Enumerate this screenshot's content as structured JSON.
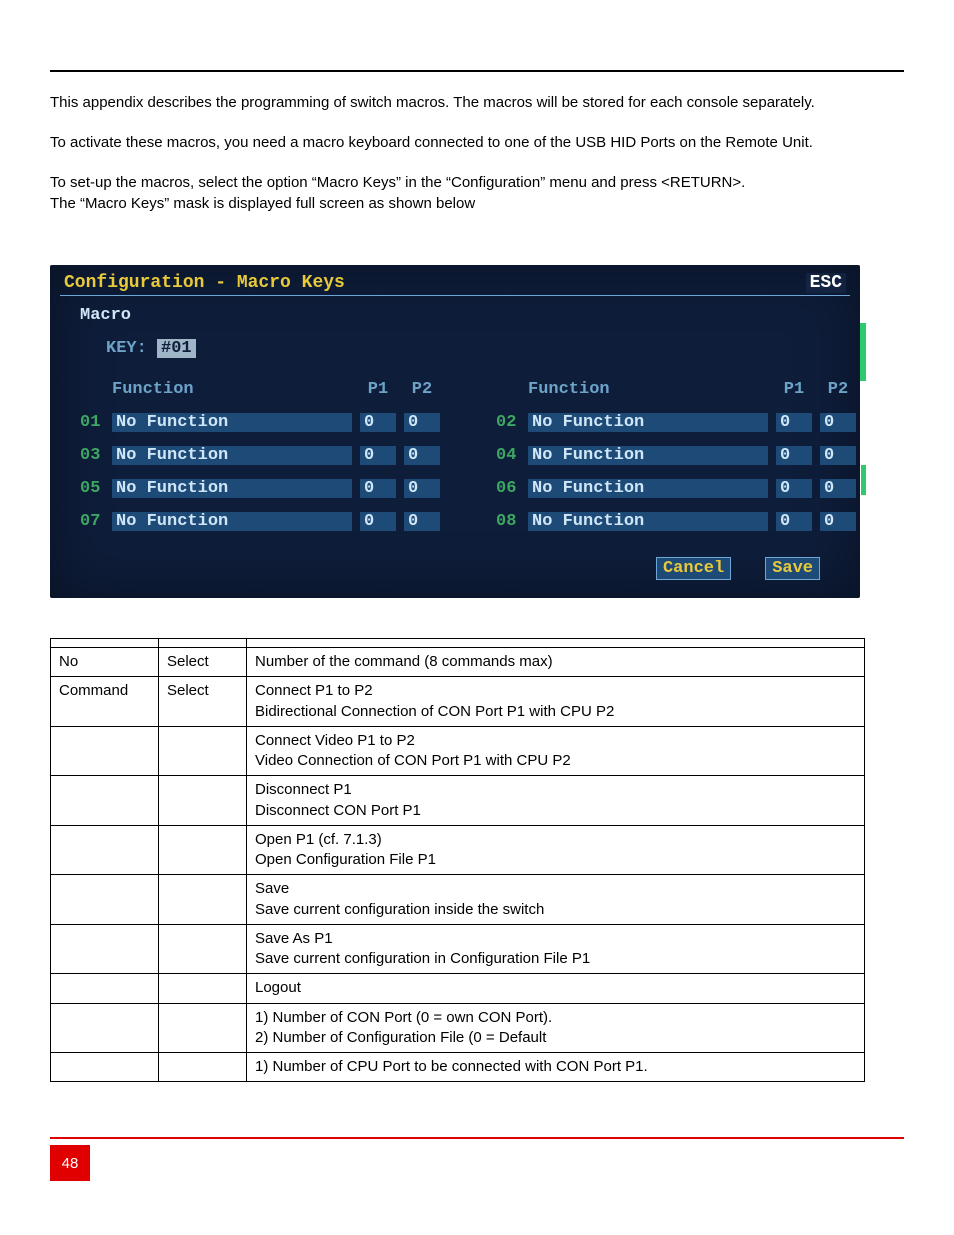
{
  "paragraphs": {
    "p1": "This appendix describes the programming of switch macros. The macros will be stored for each console separately.",
    "p2": "To activate these macros, you need a macro keyboard connected to one of the USB HID Ports on the Remote Unit.",
    "p3a": "To set-up the macros, select the option “Macro Keys” in the “Configuration” menu and press <RETURN>.",
    "p3b": "The “Macro Keys” mask is displayed full screen as shown below"
  },
  "screenshot": {
    "bg_color": "#0e1d3a",
    "title": "Configuration - Macro Keys",
    "title_color": "#e8c93a",
    "esc_label": "ESC",
    "macro_label": "Macro",
    "key_label": "KEY:",
    "key_value": "#01",
    "hdr_function": "Function",
    "hdr_p1": "P1",
    "hdr_p2": "P2",
    "header_color": "#6ea3c8",
    "num_color": "#3da761",
    "field_bg": "#1e4a78",
    "field_fg": "#cfe6f7",
    "rows": [
      {
        "n1": "01",
        "f1": "No Function",
        "p1a": "0",
        "p2a": "0",
        "n2": "02",
        "f2": "No Function",
        "p1b": "0",
        "p2b": "0"
      },
      {
        "n1": "03",
        "f1": "No Function",
        "p1a": "0",
        "p2a": "0",
        "n2": "04",
        "f2": "No Function",
        "p1b": "0",
        "p2b": "0"
      },
      {
        "n1": "05",
        "f1": "No Function",
        "p1a": "0",
        "p2a": "0",
        "n2": "06",
        "f2": "No Function",
        "p1b": "0",
        "p2b": "0"
      },
      {
        "n1": "07",
        "f1": "No Function",
        "p1a": "0",
        "p2a": "0",
        "n2": "08",
        "f2": "No Function",
        "p1b": "0",
        "p2b": "0"
      }
    ],
    "buttons": {
      "cancel": "Cancel",
      "save": "Save"
    }
  },
  "table": {
    "border_color": "#000000",
    "rows": [
      {
        "c1": "",
        "c2": "",
        "c3": ""
      },
      {
        "c1": "No",
        "c2": "Select",
        "c3": "Number of the command (8 commands max)"
      },
      {
        "c1": "Command",
        "c2": "Select",
        "c3": "Connect P1 to P2\nBidirectional Connection of CON Port P1 with CPU P2"
      },
      {
        "c1": "",
        "c2": "",
        "c3": "Connect Video P1 to P2\nVideo Connection of CON Port P1 with CPU P2"
      },
      {
        "c1": "",
        "c2": "",
        "c3": "Disconnect P1\nDisconnect CON Port P1"
      },
      {
        "c1": "",
        "c2": "",
        "c3": "Open P1 (cf. 7.1.3)\nOpen Configuration File P1"
      },
      {
        "c1": "",
        "c2": "",
        "c3": "Save\nSave current configuration inside the switch"
      },
      {
        "c1": "",
        "c2": "",
        "c3": "Save As P1\nSave current configuration in Configuration File P1"
      },
      {
        "c1": "",
        "c2": "",
        "c3": "Logout"
      },
      {
        "c1": "",
        "c2": "",
        "c3": "1) Number of CON Port (0 = own CON Port).\n2) Number of Configuration File (0 = Default"
      },
      {
        "c1": "",
        "c2": "",
        "c3": "1) Number of CPU Port to be connected with CON Port P1."
      }
    ]
  },
  "page_number": "48"
}
